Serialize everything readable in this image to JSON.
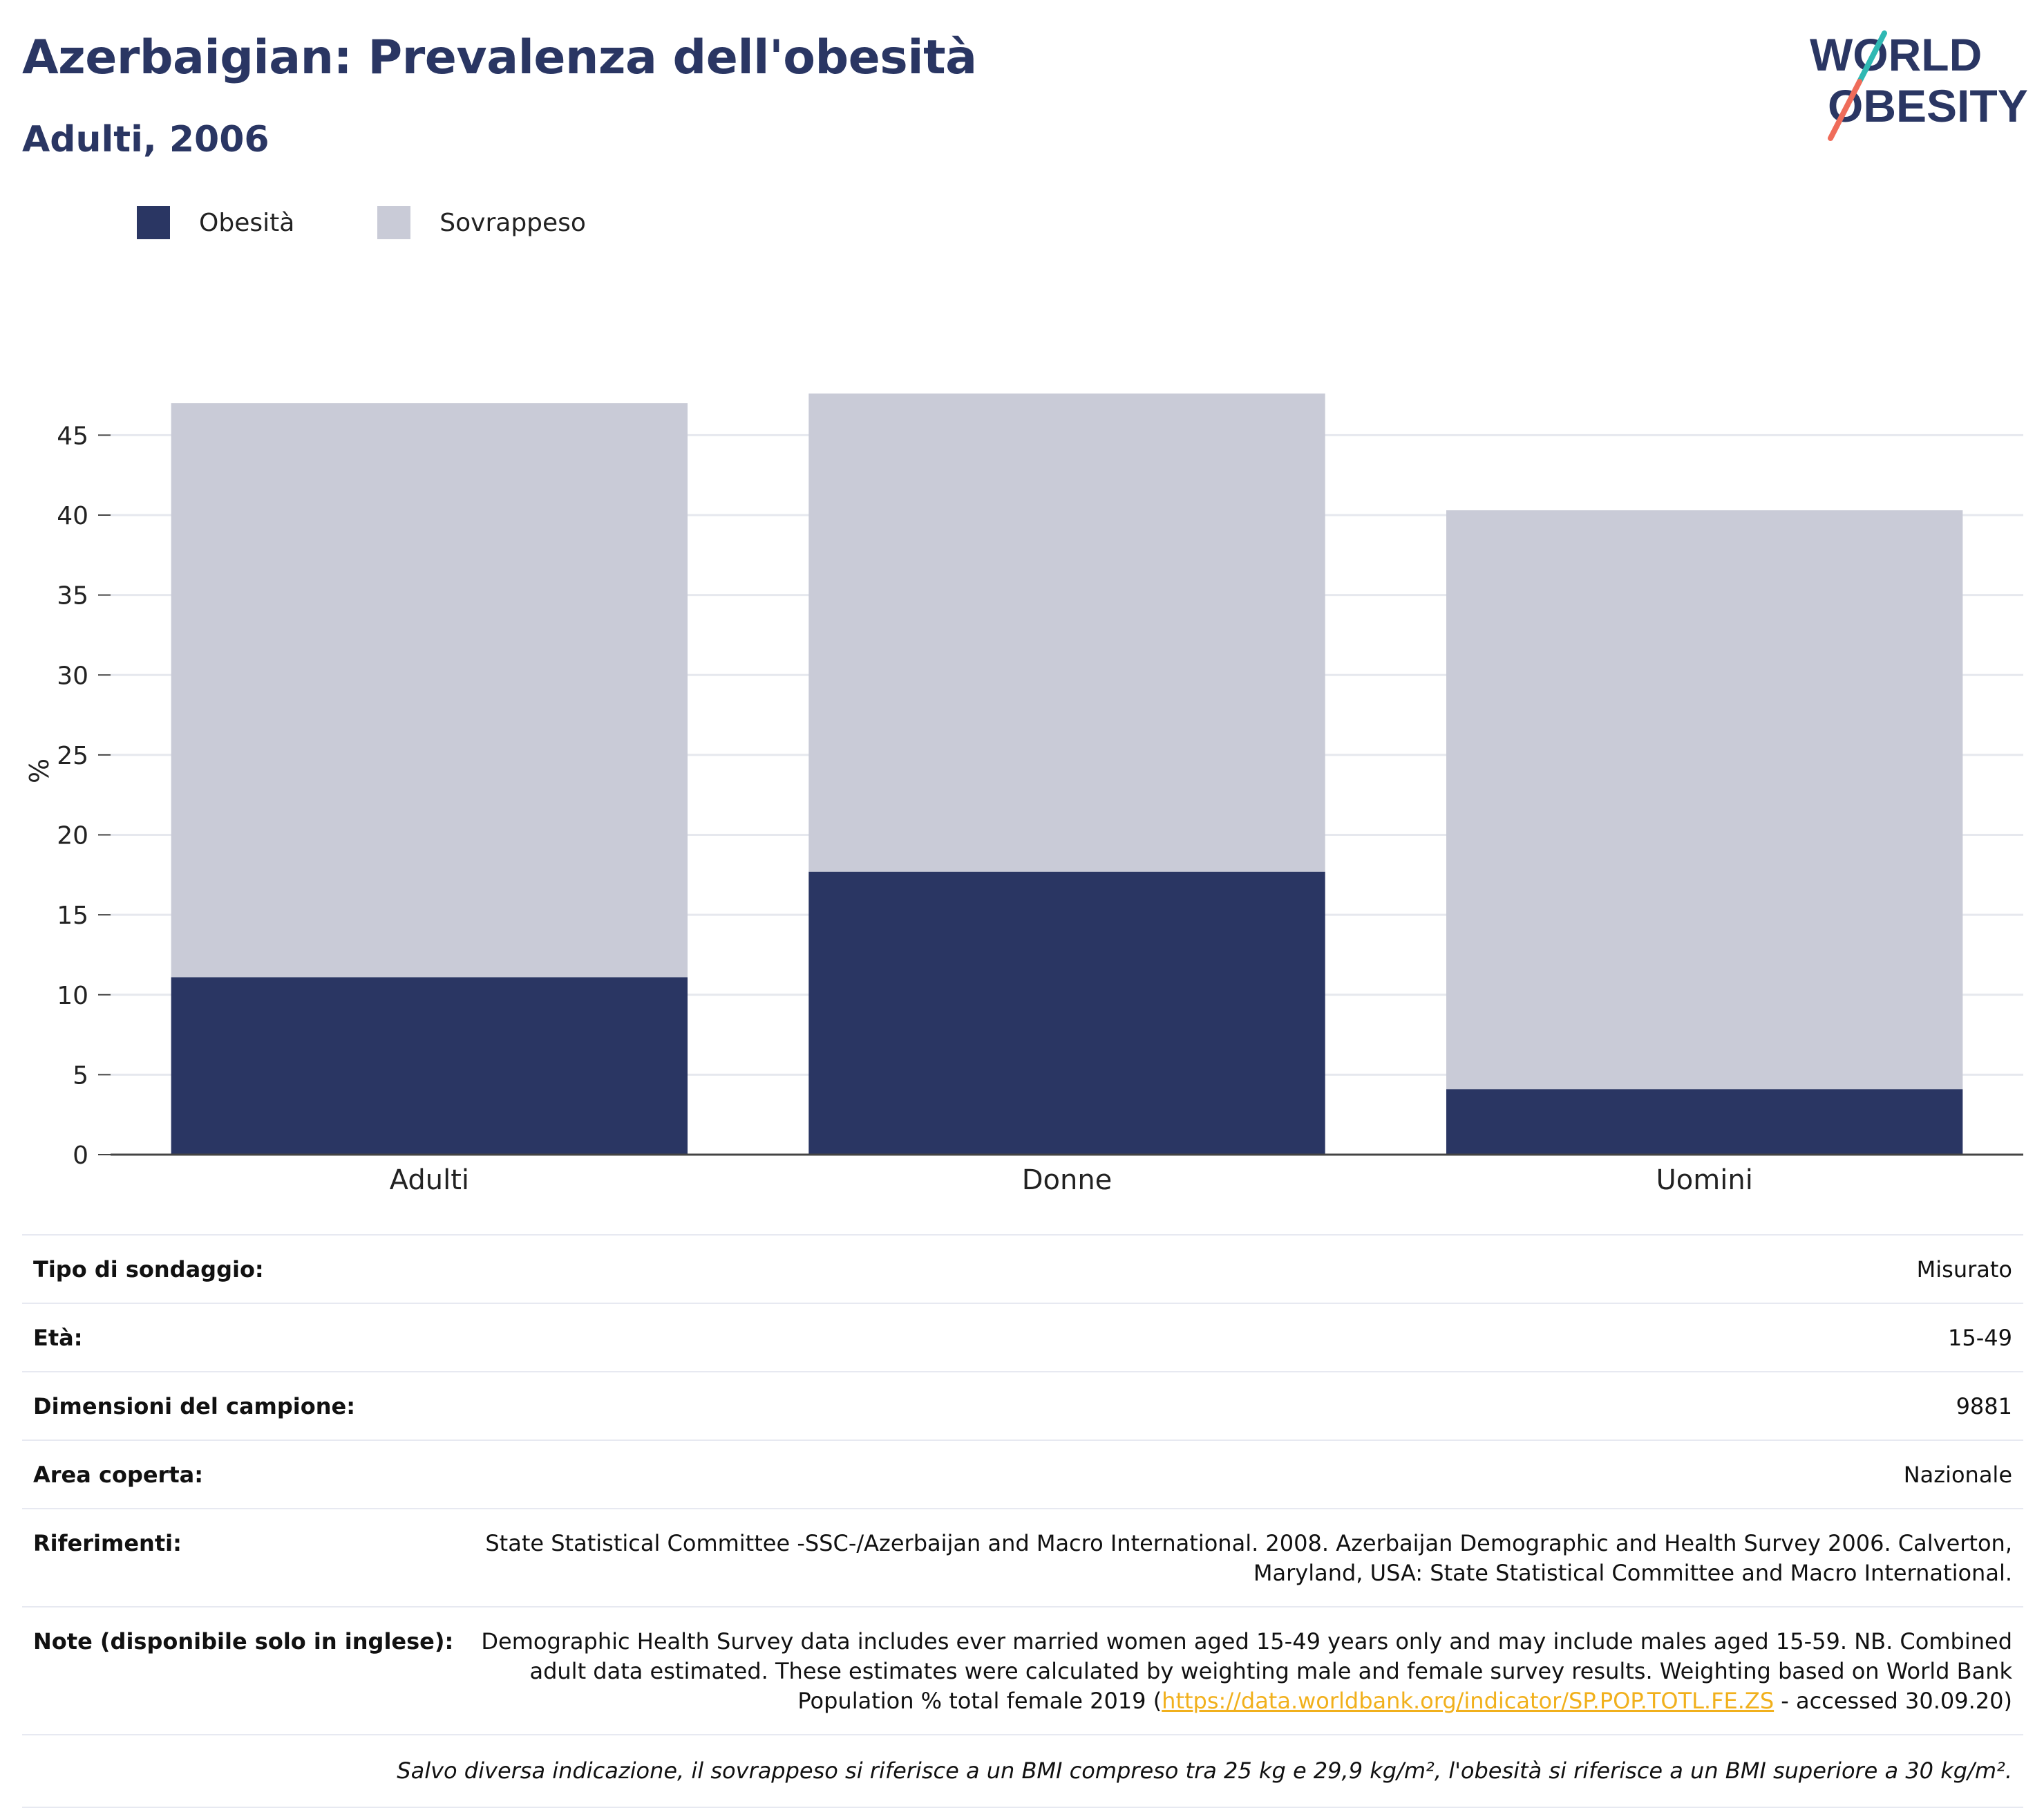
{
  "header": {
    "title": "Azerbaigian: Prevalenza dell'obesità",
    "subtitle": "Adulti, 2006"
  },
  "logo": {
    "line1": "WORLD",
    "line2": "OBESITY"
  },
  "legend": [
    {
      "label": "Obesità",
      "color": "#2a3663"
    },
    {
      "label": "Sovrappeso",
      "color": "#c9cbd7"
    }
  ],
  "chart_data": {
    "type": "bar",
    "stacked": true,
    "categories": [
      "Adulti",
      "Donne",
      "Uomini"
    ],
    "series": [
      {
        "name": "Obesità",
        "color": "#2a3663",
        "values": [
          11.1,
          17.7,
          4.1
        ]
      },
      {
        "name": "Sovrappeso",
        "color": "#c9cbd7",
        "values": [
          35.9,
          29.9,
          36.2
        ]
      }
    ],
    "ylabel": "%",
    "ylim": [
      0,
      48
    ],
    "yticks": [
      0,
      5,
      10,
      15,
      20,
      25,
      30,
      35,
      40,
      45
    ],
    "grid": true,
    "legend_position": "top-left"
  },
  "info": [
    {
      "label": "Tipo di sondaggio:",
      "value": "Misurato"
    },
    {
      "label": "Età:",
      "value": "15-49"
    },
    {
      "label": "Dimensioni del campione:",
      "value": "9881"
    },
    {
      "label": "Area coperta:",
      "value": "Nazionale"
    },
    {
      "label": "Riferimenti:",
      "value": "State Statistical Committee -SSC-/Azerbaijan and Macro International. 2008. Azerbaijan Demographic and Health Survey 2006. Calverton, Maryland, USA: State Statistical Committee and Macro International."
    }
  ],
  "notes": {
    "label": "Note (disponibile solo in inglese):",
    "text_before": "Demographic Health Survey data includes ever married women aged 15-49 years only and may include males aged 15-59. NB. Combined adult data estimated. These estimates were calculated by weighting male and female survey results. Weighting based on World Bank Population % total female 2019 (",
    "link": "https://data.worldbank.org/indicator/SP.POP.TOTL.FE.ZS",
    "text_after": " - accessed 30.09.20)"
  },
  "footnote": "Salvo diversa indicazione, il sovrappeso si riferisce a un BMI compreso tra 25 kg e 29,9 kg/m², l'obesità si riferisce a un BMI superiore a 30 kg/m²."
}
